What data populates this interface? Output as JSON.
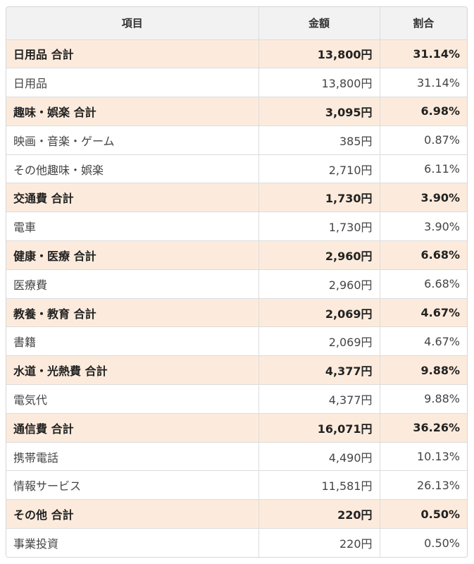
{
  "table": {
    "headers": [
      "項目",
      "金額",
      "割合"
    ],
    "rows": [
      {
        "type": "subtotal",
        "item": "日用品 合計",
        "amount": "13,800円",
        "ratio": "31.14%"
      },
      {
        "type": "detail",
        "item": "日用品",
        "amount": "13,800円",
        "ratio": "31.14%"
      },
      {
        "type": "subtotal",
        "item": "趣味・娯楽 合計",
        "amount": "3,095円",
        "ratio": "6.98%"
      },
      {
        "type": "detail",
        "item": "映画・音楽・ゲーム",
        "amount": "385円",
        "ratio": "0.87%"
      },
      {
        "type": "detail",
        "item": "その他趣味・娯楽",
        "amount": "2,710円",
        "ratio": "6.11%"
      },
      {
        "type": "subtotal",
        "item": "交通費 合計",
        "amount": "1,730円",
        "ratio": "3.90%"
      },
      {
        "type": "detail",
        "item": "電車",
        "amount": "1,730円",
        "ratio": "3.90%"
      },
      {
        "type": "subtotal",
        "item": "健康・医療 合計",
        "amount": "2,960円",
        "ratio": "6.68%"
      },
      {
        "type": "detail",
        "item": "医療費",
        "amount": "2,960円",
        "ratio": "6.68%"
      },
      {
        "type": "subtotal",
        "item": "教養・教育 合計",
        "amount": "2,069円",
        "ratio": "4.67%"
      },
      {
        "type": "detail",
        "item": "書籍",
        "amount": "2,069円",
        "ratio": "4.67%"
      },
      {
        "type": "subtotal",
        "item": "水道・光熱費 合計",
        "amount": "4,377円",
        "ratio": "9.88%"
      },
      {
        "type": "detail",
        "item": "電気代",
        "amount": "4,377円",
        "ratio": "9.88%"
      },
      {
        "type": "subtotal",
        "item": "通信費 合計",
        "amount": "16,071円",
        "ratio": "36.26%"
      },
      {
        "type": "detail",
        "item": "携帯電話",
        "amount": "4,490円",
        "ratio": "10.13%"
      },
      {
        "type": "detail",
        "item": "情報サービス",
        "amount": "11,581円",
        "ratio": "26.13%"
      },
      {
        "type": "subtotal",
        "item": "その他 合計",
        "amount": "220円",
        "ratio": "0.50%"
      },
      {
        "type": "detail",
        "item": "事業投資",
        "amount": "220円",
        "ratio": "0.50%"
      }
    ]
  },
  "colors": {
    "header_bg": "#f2f2f2",
    "subtotal_bg": "#fcebdc",
    "detail_bg": "#ffffff",
    "border": "#dcdcdc"
  }
}
